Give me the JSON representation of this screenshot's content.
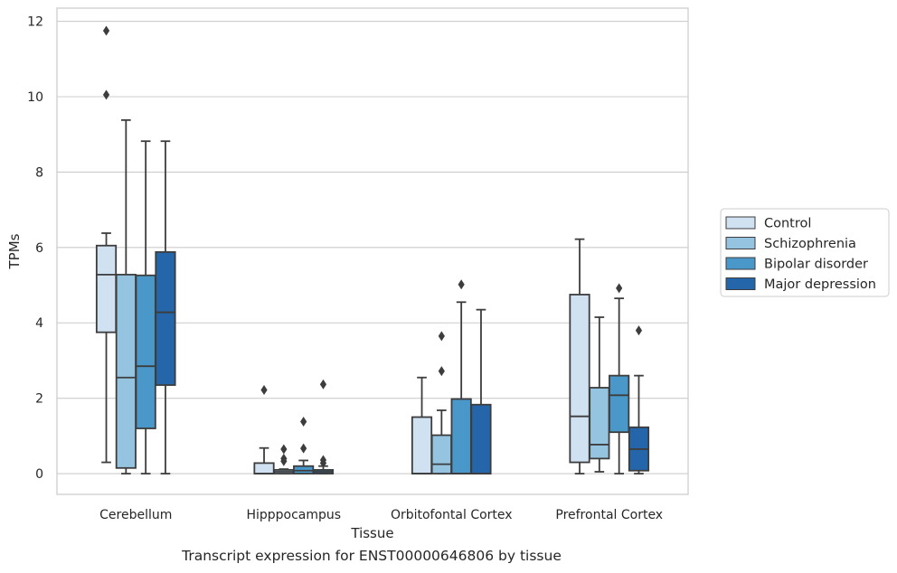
{
  "caption": "Transcript expression for ENST00000646806 by tissue",
  "chart_data": {
    "type": "box",
    "title": "",
    "xlabel": "Tissue",
    "ylabel": "TPMs",
    "ylim": [
      -0.55,
      12.35
    ],
    "yticks": [
      0,
      2,
      4,
      6,
      8,
      10,
      12
    ],
    "grid": "horizontal",
    "legend_position": "right",
    "categories": [
      "Cerebellum",
      "Hipppocampus",
      "Orbitofontal Cortex",
      "Prefrontal Cortex"
    ],
    "series": [
      {
        "name": "Control",
        "color": "#d0e1f2",
        "boxes": [
          {
            "whisker_low": 0.3,
            "q1": 3.75,
            "median": 5.28,
            "q3": 6.05,
            "whisker_high": 6.38,
            "outliers": [
              10.05,
              11.75
            ]
          },
          {
            "whisker_low": 0.0,
            "q1": 0.0,
            "median": 0.0,
            "q3": 0.28,
            "whisker_high": 0.68,
            "outliers": [
              2.22
            ]
          },
          {
            "whisker_low": 0.0,
            "q1": 0.0,
            "median": 0.0,
            "q3": 1.5,
            "whisker_high": 2.55,
            "outliers": []
          },
          {
            "whisker_low": 0.0,
            "q1": 0.3,
            "median": 1.52,
            "q3": 4.75,
            "whisker_high": 6.22,
            "outliers": []
          }
        ]
      },
      {
        "name": "Schizophrenia",
        "color": "#94c4df",
        "boxes": [
          {
            "whisker_low": 0.0,
            "q1": 0.15,
            "median": 2.55,
            "q3": 5.28,
            "whisker_high": 9.38,
            "outliers": []
          },
          {
            "whisker_low": 0.0,
            "q1": 0.0,
            "median": 0.05,
            "q3": 0.1,
            "whisker_high": 0.12,
            "outliers": [
              0.33,
              0.4,
              0.65
            ]
          },
          {
            "whisker_low": 0.0,
            "q1": 0.0,
            "median": 0.25,
            "q3": 1.02,
            "whisker_high": 1.68,
            "outliers": [
              2.72,
              3.65
            ]
          },
          {
            "whisker_low": 0.05,
            "q1": 0.4,
            "median": 0.77,
            "q3": 2.28,
            "whisker_high": 4.15,
            "outliers": []
          }
        ]
      },
      {
        "name": "Bipolar disorder",
        "color": "#4a98c9",
        "boxes": [
          {
            "whisker_low": 0.0,
            "q1": 1.2,
            "median": 2.85,
            "q3": 5.26,
            "whisker_high": 8.82,
            "outliers": []
          },
          {
            "whisker_low": 0.0,
            "q1": 0.0,
            "median": 0.08,
            "q3": 0.2,
            "whisker_high": 0.35,
            "outliers": [
              0.67,
              1.38
            ]
          },
          {
            "whisker_low": 0.0,
            "q1": 0.0,
            "median": 0.0,
            "q3": 1.98,
            "whisker_high": 4.55,
            "outliers": [
              5.02
            ]
          },
          {
            "whisker_low": 0.0,
            "q1": 1.1,
            "median": 2.08,
            "q3": 2.6,
            "whisker_high": 4.65,
            "outliers": [
              4.92
            ]
          }
        ]
      },
      {
        "name": "Major depression",
        "color": "#2565a9",
        "boxes": [
          {
            "whisker_low": 0.0,
            "q1": 2.35,
            "median": 4.28,
            "q3": 5.88,
            "whisker_high": 8.82,
            "outliers": []
          },
          {
            "whisker_low": 0.0,
            "q1": 0.0,
            "median": 0.05,
            "q3": 0.1,
            "whisker_high": 0.2,
            "outliers": [
              0.28,
              0.36,
              2.37
            ]
          },
          {
            "whisker_low": 0.0,
            "q1": 0.0,
            "median": 0.0,
            "q3": 1.83,
            "whisker_high": 4.35,
            "outliers": []
          },
          {
            "whisker_low": 0.0,
            "q1": 0.08,
            "median": 0.65,
            "q3": 1.23,
            "whisker_high": 2.6,
            "outliers": [
              3.8
            ]
          }
        ]
      }
    ]
  }
}
